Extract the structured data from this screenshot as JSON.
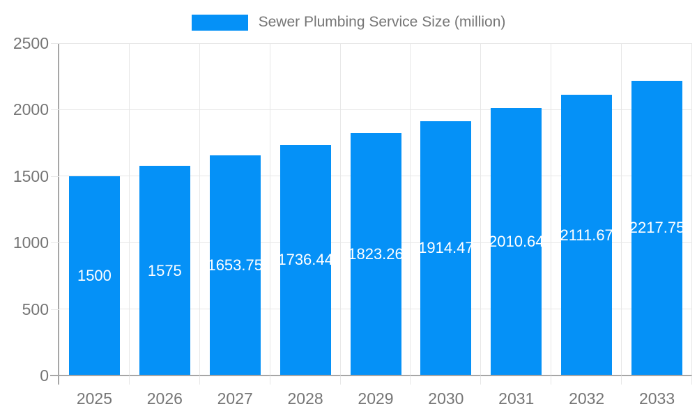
{
  "legend": {
    "label": "Sewer Plumbing Service Size (million)"
  },
  "chart_data": {
    "type": "bar",
    "categories": [
      "2025",
      "2026",
      "2027",
      "2028",
      "2029",
      "2030",
      "2031",
      "2032",
      "2033"
    ],
    "values": [
      1500,
      1575,
      1653.75,
      1736.44,
      1823.26,
      1914.47,
      2010.64,
      2111.67,
      2217.75
    ],
    "legend_entries": [
      "Sewer Plumbing Service Size (million)"
    ],
    "legend_position": "top-center",
    "value_labels_position": "inside-center",
    "xlabel": "",
    "ylabel": "",
    "ylim": [
      0,
      2500
    ],
    "yticks": [
      0,
      500,
      1000,
      1500,
      2000,
      2500
    ],
    "grid": true,
    "colors": {
      "bar": "#0591f7",
      "value_label": "#ffffff",
      "axis_text": "#757575",
      "axis_line": "#a6a6a6",
      "gridline": "#e7e7e7",
      "background": "#ffffff"
    }
  }
}
